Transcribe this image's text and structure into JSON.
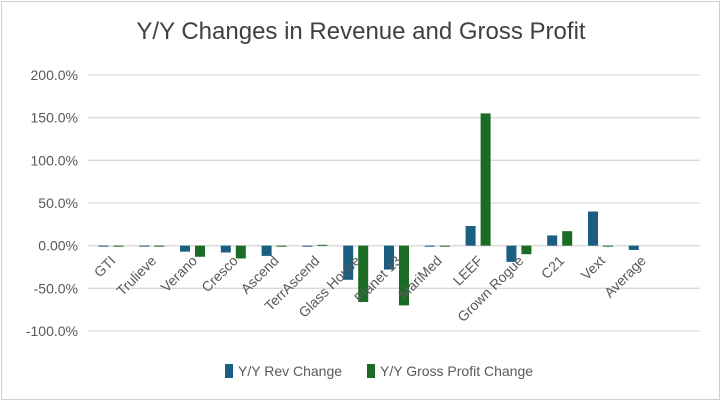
{
  "chart_data": {
    "type": "bar",
    "title": "Y/Y Changes in Revenue and Gross Profit",
    "categories": [
      "GTI",
      "Trulieve",
      "Verano",
      "Cresco",
      "Ascend",
      "TerrAscend",
      "Glass House",
      "Planet 13",
      "MariMed",
      "LEEF",
      "Grown Rogue",
      "C21",
      "Vext",
      "Average"
    ],
    "series": [
      {
        "name": "Y/Y Rev Change",
        "color": "#1a5f82",
        "values": [
          0,
          0,
          -7,
          -8,
          -12,
          0,
          -40,
          -28,
          0,
          23,
          -19,
          12,
          40,
          -5
        ]
      },
      {
        "name": "Y/Y Gross Profit Change",
        "color": "#1b6b25",
        "values": [
          -1,
          -1,
          -13,
          -15,
          0,
          1,
          -66,
          -70,
          -1,
          155,
          -10,
          17,
          0,
          null
        ]
      }
    ],
    "ylim": [
      -100,
      200
    ],
    "yticks": [
      200,
      150,
      100,
      50,
      0,
      -50,
      -100
    ],
    "ytick_labels": [
      "200.0%",
      "150.0%",
      "100.0%",
      "50.0%",
      "0.00%",
      "-50.0%",
      "-100.0%"
    ],
    "grid": true,
    "legend": "bottom"
  }
}
